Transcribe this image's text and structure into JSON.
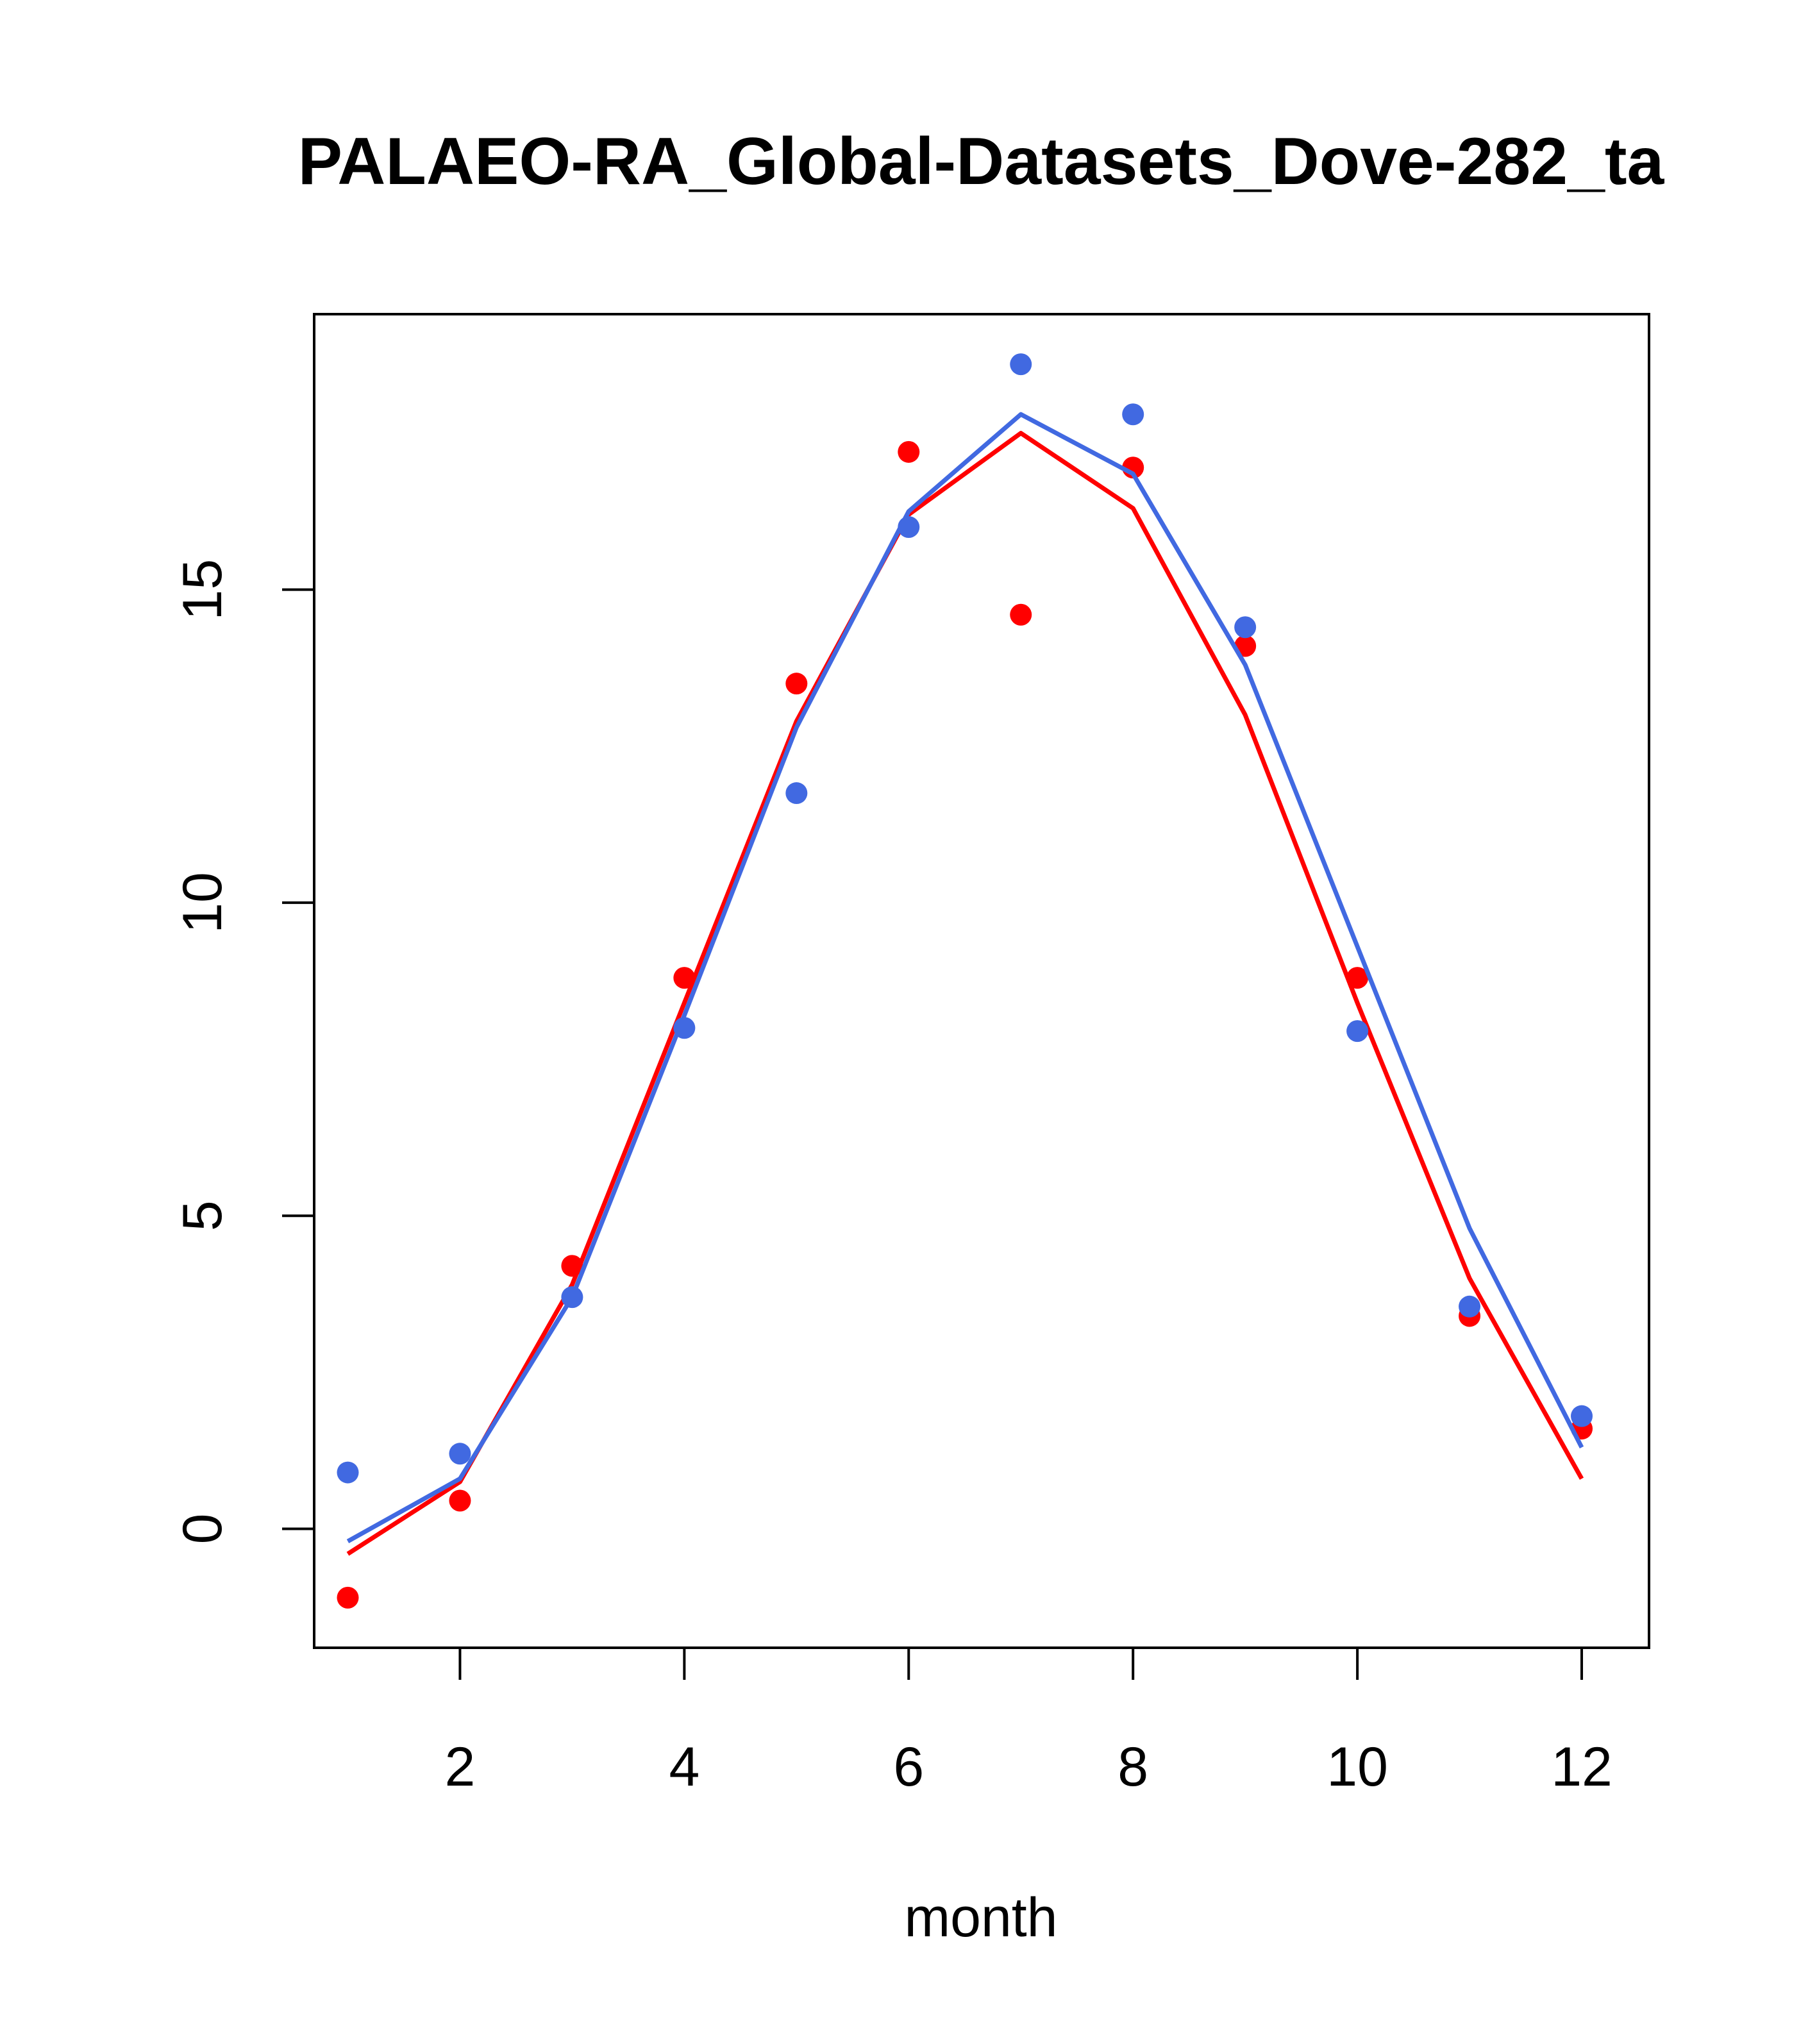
{
  "chart_data": {
    "type": "line",
    "title": "PALAEO-RA_Global-Datasets_Dove-282_ta",
    "xlabel": "month",
    "ylabel": "",
    "xlim": [
      0.7,
      12.6
    ],
    "ylim": [
      -1.9,
      19.4
    ],
    "x_ticks": [
      2,
      4,
      6,
      8,
      10,
      12
    ],
    "y_ticks": [
      0,
      5,
      10,
      15
    ],
    "grid": false,
    "legend": "none",
    "x": [
      1,
      2,
      3,
      4,
      5,
      6,
      7,
      8,
      9,
      10,
      11,
      12
    ],
    "series": [
      {
        "color": "#ff0000",
        "points": [
          -1.1,
          0.45,
          4.2,
          8.8,
          13.5,
          17.2,
          14.6,
          16.95,
          14.1,
          8.8,
          3.4,
          1.6
        ],
        "line": [
          -0.4,
          0.75,
          3.9,
          8.4,
          12.9,
          16.2,
          17.5,
          16.3,
          13.0,
          8.4,
          4.0,
          0.8
        ]
      },
      {
        "color": "#4169e1",
        "points": [
          0.9,
          1.2,
          3.7,
          8.0,
          11.75,
          16.0,
          18.6,
          17.8,
          14.4,
          7.95,
          3.55,
          1.8
        ],
        "line": [
          -0.2,
          0.8,
          3.7,
          8.2,
          12.8,
          16.25,
          17.8,
          16.85,
          13.8,
          9.3,
          4.8,
          1.3
        ]
      }
    ]
  }
}
